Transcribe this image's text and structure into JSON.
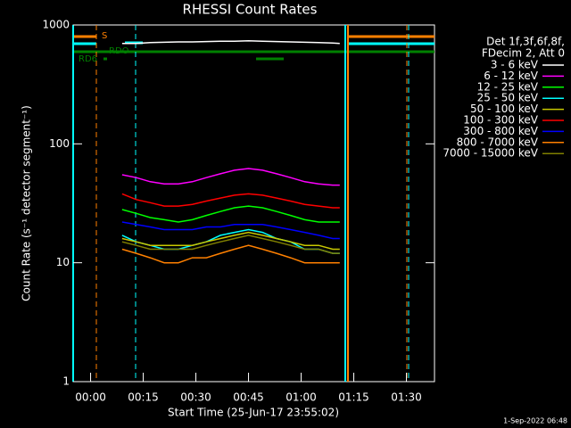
{
  "chart_data": {
    "type": "line",
    "title": "RHESSI Count Rates",
    "x_label": "Start Time (25-Jun-17 23:55:02)",
    "y_label": "Count Rate (s⁻¹ detector segment⁻¹)",
    "legend_header": [
      "Det 1f,3f,6f,8f,",
      "FDecim 2, Att 0"
    ],
    "flag_labels": [
      "S",
      "RDO",
      "RD6"
    ],
    "timestamp": "1-Sep-2022 06:48",
    "log_y": true,
    "legend": "right",
    "xlim": [
      -4.97,
      98
    ],
    "ylim": [
      1,
      1000
    ],
    "xticks": [
      {
        "value": 0,
        "label": "00:00"
      },
      {
        "value": 15,
        "label": "00:15"
      },
      {
        "value": 30,
        "label": "00:30"
      },
      {
        "value": 45,
        "label": "00:45"
      },
      {
        "value": 60,
        "label": "01:00"
      },
      {
        "value": 75,
        "label": "01:15"
      },
      {
        "value": 90,
        "label": "01:30"
      }
    ],
    "yticks": [
      1,
      10,
      100,
      1000
    ],
    "x": [
      9,
      13,
      17,
      21,
      25,
      29,
      33,
      37,
      41,
      45,
      49,
      53,
      57,
      61,
      65,
      69,
      71
    ],
    "series": [
      {
        "name": "3 - 6 keV",
        "color": "#000000",
        "values": [
          700,
          700,
          710,
          715,
          720,
          720,
          725,
          730,
          730,
          735,
          730,
          725,
          720,
          715,
          710,
          705,
          700
        ]
      },
      {
        "name": "6 - 12 keV",
        "color": "#ff00ff",
        "values": [
          55,
          52,
          48,
          46,
          46,
          48,
          52,
          56,
          60,
          62,
          60,
          56,
          52,
          48,
          46,
          45,
          45
        ]
      },
      {
        "name": "12 - 25 keV",
        "color": "#00ff00",
        "values": [
          28,
          26,
          24,
          23,
          22,
          23,
          25,
          27,
          29,
          30,
          29,
          27,
          25,
          23,
          22,
          22,
          22
        ]
      },
      {
        "name": "25 - 50 keV",
        "color": "#00ffff",
        "values": [
          17,
          15,
          14,
          13,
          13,
          14,
          15,
          17,
          18,
          19,
          18,
          16,
          15,
          13,
          13,
          12,
          12
        ]
      },
      {
        "name": "50 - 100 keV",
        "color": "#c8c800",
        "values": [
          16,
          15,
          14,
          14,
          14,
          14,
          15,
          16,
          17,
          18,
          17,
          16,
          15,
          14,
          14,
          13,
          13
        ]
      },
      {
        "name": "100 - 300 keV",
        "color": "#ff0000",
        "values": [
          38,
          34,
          32,
          30,
          30,
          31,
          33,
          35,
          37,
          38,
          37,
          35,
          33,
          31,
          30,
          29,
          29
        ]
      },
      {
        "name": "300 - 800 keV",
        "color": "#0000ff",
        "values": [
          22,
          21,
          20,
          19,
          19,
          19,
          20,
          20,
          21,
          21,
          21,
          20,
          19,
          18,
          17,
          16,
          16
        ]
      },
      {
        "name": "800 - 7000 keV",
        "color": "#ff8000",
        "values": [
          13,
          12,
          11,
          10,
          10,
          11,
          11,
          12,
          13,
          14,
          13,
          12,
          11,
          10,
          10,
          10,
          10
        ]
      },
      {
        "name": "7000 - 15000 keV",
        "color": "#808000",
        "values": [
          15,
          14,
          13,
          13,
          13,
          13,
          14,
          15,
          16,
          17,
          16,
          15,
          14,
          13,
          13,
          12,
          12
        ]
      }
    ]
  }
}
